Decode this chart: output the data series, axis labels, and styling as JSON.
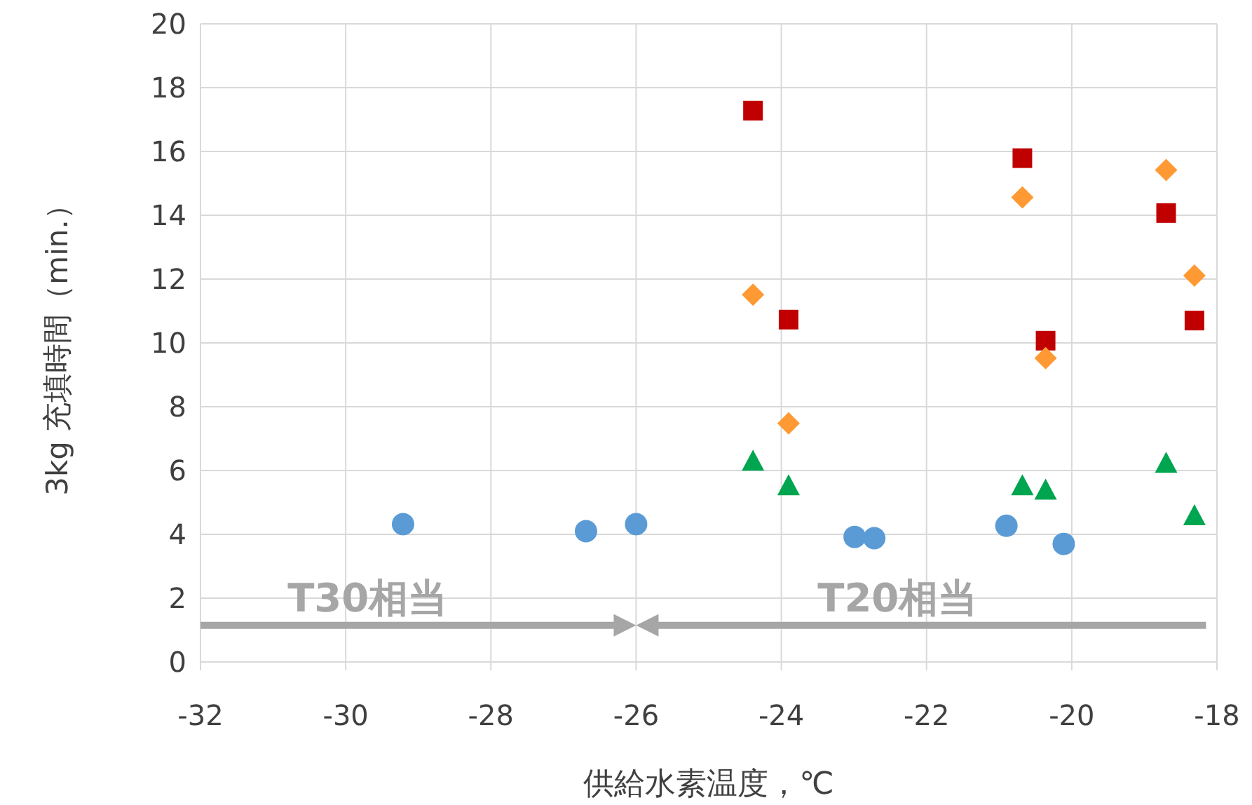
{
  "chart_data": {
    "type": "scatter",
    "xlabel": "供給水素温度，℃",
    "ylabel": "3kg 充填時間（min.）",
    "xlim": [
      -32,
      -18
    ],
    "xticks": [
      -32,
      -30,
      -28,
      -26,
      -24,
      -22,
      -20,
      -18
    ],
    "ylim": [
      0,
      20
    ],
    "yticks": [
      0,
      2,
      4,
      6,
      8,
      10,
      12,
      14,
      16,
      18,
      20
    ],
    "grid": true,
    "series": [
      {
        "color": "#c00000",
        "marker": "square",
        "x": [
          -24.39,
          -23.9,
          -20.68,
          -20.36,
          -18.7,
          -18.31
        ],
        "values": [
          17.28,
          10.73,
          15.79,
          10.07,
          14.07,
          10.7
        ]
      },
      {
        "color": "#ff9933",
        "marker": "diamond",
        "x": [
          -24.39,
          -23.9,
          -20.68,
          -20.36,
          -18.7,
          -18.31
        ],
        "values": [
          11.51,
          7.48,
          14.56,
          9.52,
          15.42,
          12.11
        ]
      },
      {
        "color": "#00a550",
        "marker": "triangle",
        "x": [
          -24.39,
          -23.9,
          -20.68,
          -20.36,
          -18.7,
          -18.31
        ],
        "values": [
          6.26,
          5.49,
          5.49,
          5.35,
          6.19,
          4.55
        ]
      },
      {
        "color": "#5b9bd5",
        "marker": "circle",
        "x": [
          -29.21,
          -26.69,
          -26.0,
          -22.99,
          -22.72,
          -20.9,
          -20.11
        ],
        "values": [
          4.32,
          4.1,
          4.32,
          3.92,
          3.88,
          4.27,
          3.7
        ]
      }
    ],
    "annotations": [
      "T30相当",
      "T20相当"
    ]
  }
}
